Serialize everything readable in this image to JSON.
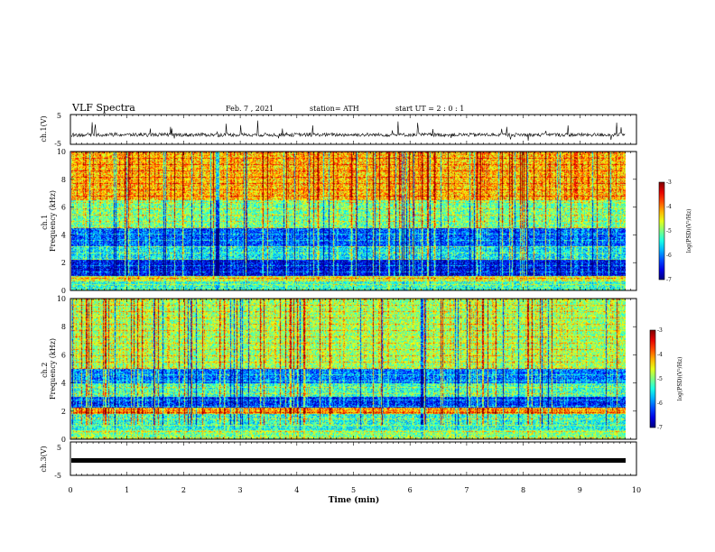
{
  "header": {
    "title": "VLF Spectra",
    "date": "Feb. 7 , 2021",
    "station": "station= ATH",
    "start": "start UT =  2 : 0 : 1"
  },
  "chart_data": [
    {
      "type": "line",
      "name": "ch1-waveform",
      "ylabel": "ch.1(V)",
      "ylim": [
        -5,
        5
      ],
      "yticks": [
        "5",
        "-5"
      ],
      "xlim": [
        0,
        10
      ],
      "baseline": -1.8,
      "noise_amplitude": 0.6,
      "spike_count": 40
    },
    {
      "type": "heatmap",
      "name": "ch1-spectrogram",
      "ylabel": "ch.1 Frequency (kHz)",
      "ylim": [
        0,
        10
      ],
      "yticks": [
        "0",
        "2",
        "4",
        "6",
        "8",
        "10"
      ],
      "xlim": [
        0,
        9.8
      ],
      "color_scale": {
        "label": "log(PSD)(V²/Hz)",
        "range": [
          -7,
          -3
        ],
        "ticks": [
          "-3",
          "-4",
          "-5",
          "-6",
          "-7"
        ]
      },
      "bands_khz": [
        {
          "from": 0,
          "to": 0.6,
          "level": -5.3
        },
        {
          "from": 0.6,
          "to": 1.0,
          "level": -4.6
        },
        {
          "from": 1.0,
          "to": 2.2,
          "level": -6.6
        },
        {
          "from": 2.2,
          "to": 3.2,
          "level": -5.6
        },
        {
          "from": 3.2,
          "to": 4.5,
          "level": -6.2
        },
        {
          "from": 4.5,
          "to": 6.5,
          "level": -5.1
        },
        {
          "from": 6.5,
          "to": 10,
          "level": -4.3
        }
      ]
    },
    {
      "type": "heatmap",
      "name": "ch2-spectrogram",
      "ylabel": "ch.2 Frequency (kHz)",
      "ylim": [
        0,
        10
      ],
      "yticks": [
        "0",
        "2",
        "4",
        "6",
        "8",
        "10"
      ],
      "xlim": [
        0,
        9.8
      ],
      "color_scale": {
        "label": "log(PSD)(V²/Hz)",
        "range": [
          -7,
          -3
        ],
        "ticks": [
          "-3",
          "-4",
          "-5",
          "-6",
          "-7"
        ]
      },
      "bands_khz": [
        {
          "from": 0,
          "to": 0.6,
          "level": -5.0
        },
        {
          "from": 0.6,
          "to": 1.8,
          "level": -5.4
        },
        {
          "from": 1.8,
          "to": 2.2,
          "level": -4.2
        },
        {
          "from": 2.2,
          "to": 3.0,
          "level": -6.4
        },
        {
          "from": 3.0,
          "to": 4.0,
          "level": -5.3
        },
        {
          "from": 4.0,
          "to": 5.0,
          "level": -6.1
        },
        {
          "from": 5.0,
          "to": 10,
          "level": -4.9
        }
      ]
    },
    {
      "type": "line",
      "name": "ch3-waveform",
      "ylabel": "ch.3(V)",
      "ylim": [
        -5,
        5
      ],
      "yticks": [
        "5",
        "-5"
      ],
      "xlim": [
        0,
        10
      ],
      "baseline": -1.0,
      "band_thickness_v": 0.9
    }
  ],
  "xaxis": {
    "label": "Time (min)",
    "ticks": [
      "0",
      "1",
      "2",
      "3",
      "4",
      "5",
      "6",
      "7",
      "8",
      "9",
      "10"
    ]
  }
}
